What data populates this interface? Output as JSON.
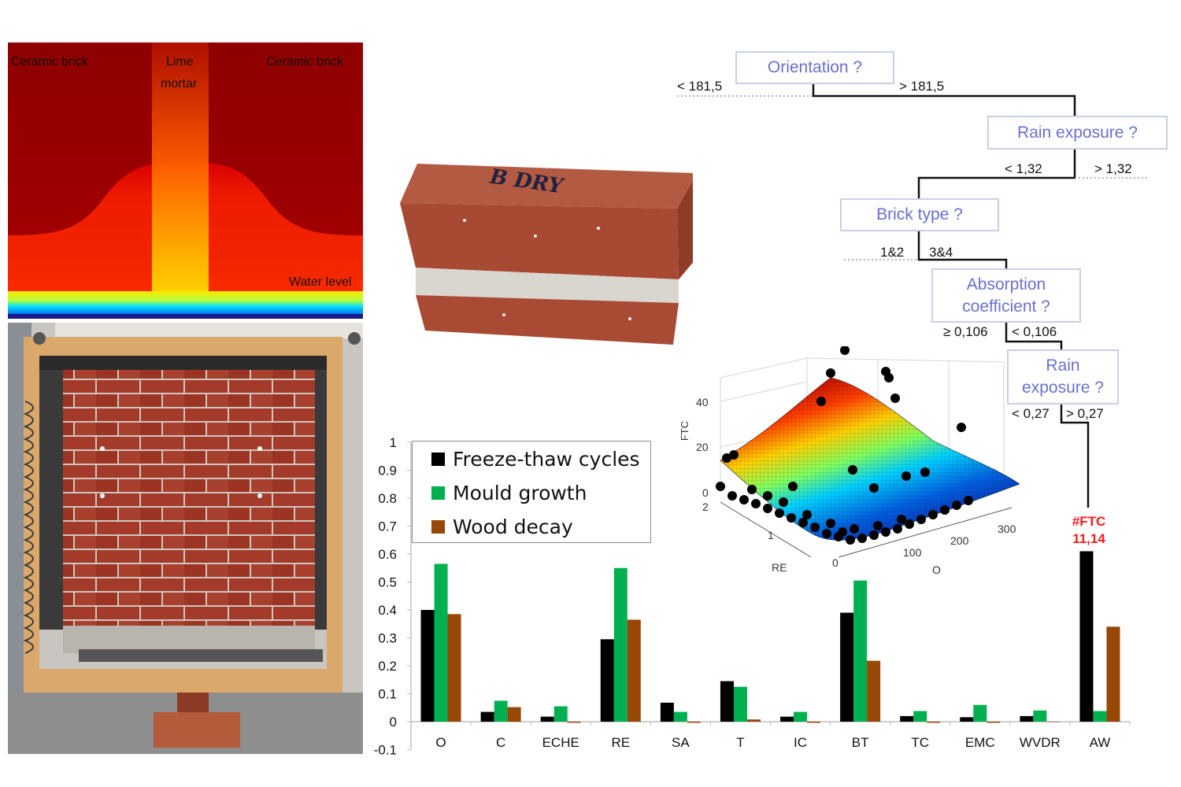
{
  "heatmap": {
    "labels": [
      "Ceramic brick",
      "Lime",
      "mortar",
      "Ceramic brick"
    ],
    "water_level": "Water level"
  },
  "brick": {
    "handwriting": "B DRY"
  },
  "tree": {
    "nodes": [
      {
        "id": "orientation",
        "label": "Orientation ?"
      },
      {
        "id": "rain1",
        "label": "Rain exposure ?"
      },
      {
        "id": "brick_type",
        "label": "Brick type ?"
      },
      {
        "id": "absorption",
        "label": "Absorption coefficient ?"
      },
      {
        "id": "rain2",
        "label": "Rain exposure ?"
      }
    ],
    "splits": [
      "< 181,5",
      "> 181,5",
      "< 1,32",
      "> 1,32",
      "1&2",
      "3&4",
      "≥ 0,106",
      "< 0,106",
      "< 0,27",
      "> 0,27"
    ],
    "leaf": {
      "line1": "#FTC",
      "line2": "11,14",
      "color": "#ff1a1a"
    }
  },
  "surface": {
    "zlabel": "FTC",
    "xlabel": "RE",
    "ylabel": "O",
    "z_ticks": [
      "40",
      "20",
      "0"
    ],
    "re_ticks": [
      "2",
      "1",
      "0"
    ],
    "o_ticks": [
      "100",
      "200",
      "300"
    ]
  },
  "chart_data": {
    "type": "bar",
    "categories": [
      "O",
      "C",
      "ECHE",
      "RE",
      "SA",
      "T",
      "IC",
      "BT",
      "TC",
      "EMC",
      "WVDR",
      "AW"
    ],
    "series": [
      {
        "name": "Freeze-thaw cycles",
        "color": "#000000",
        "values": [
          0.4,
          0.035,
          0.018,
          0.295,
          0.068,
          0.145,
          0.018,
          0.39,
          0.02,
          0.016,
          0.02,
          0.61
        ]
      },
      {
        "name": "Mould growth",
        "color": "#00b050",
        "values": [
          0.565,
          0.075,
          0.055,
          0.55,
          0.035,
          0.125,
          0.035,
          0.505,
          0.038,
          0.06,
          0.04,
          0.038
        ]
      },
      {
        "name": "Wood decay",
        "color": "#974706",
        "values": [
          0.385,
          0.052,
          -0.004,
          0.365,
          -0.004,
          0.008,
          -0.004,
          0.218,
          -0.004,
          -0.004,
          0,
          0.34
        ]
      }
    ],
    "ylim": [
      -0.1,
      1
    ],
    "yticks": [
      "1",
      "0.9",
      "0.8",
      "0.7",
      "0.6",
      "0.5",
      "0.4",
      "0.3",
      "0.2",
      "0.1",
      "0",
      "-0.1"
    ],
    "legend": "top-left"
  }
}
